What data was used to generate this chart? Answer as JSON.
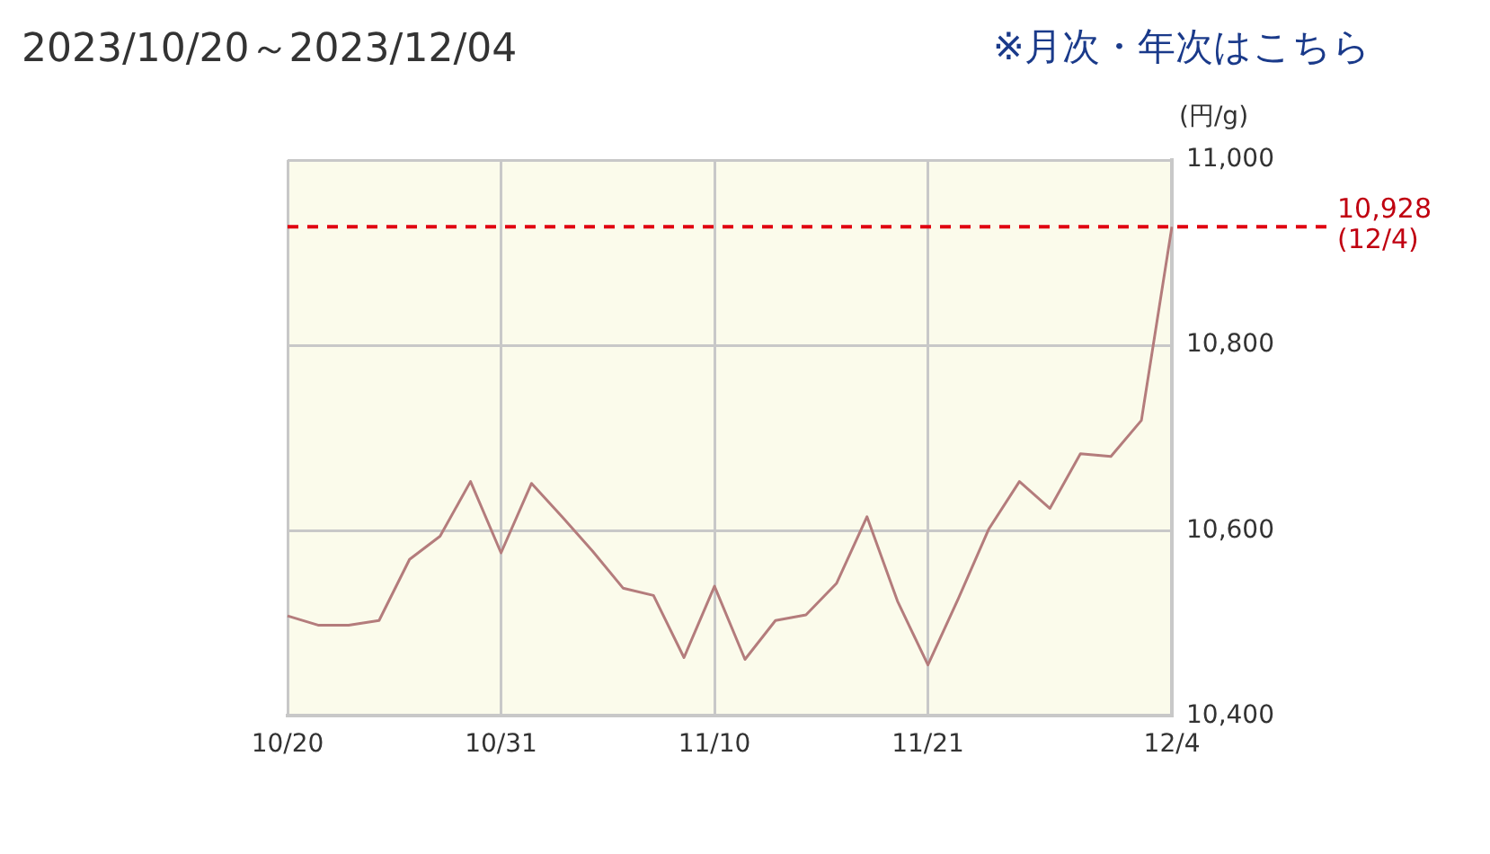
{
  "chart_data": {
    "type": "line",
    "title": "2023/10/20～2023/12/04",
    "ylabel": "(円/g)",
    "annotations": [
      "※月次・年次はこちら"
    ],
    "categories": [
      "10/20",
      null,
      null,
      null,
      null,
      null,
      null,
      "10/31",
      null,
      null,
      null,
      null,
      null,
      null,
      "11/10",
      null,
      null,
      null,
      null,
      null,
      null,
      "11/21",
      null,
      null,
      null,
      null,
      null,
      null,
      null,
      "12/4"
    ],
    "series": [
      {
        "color": "#b47c7c",
        "values": [
          10508,
          10498,
          10498,
          10503,
          10569,
          10594,
          10653,
          10576,
          10651,
          10615,
          10578,
          10538,
          10530,
          10463,
          10540,
          10461,
          10503,
          10509,
          10543,
          10615,
          10524,
          10455,
          10527,
          10602,
          10653,
          10624,
          10683,
          10680,
          10719,
          10928
        ]
      }
    ],
    "ylim": [
      10400,
      11000
    ],
    "yticks": [
      {
        "value": 10400,
        "label": "10,400"
      },
      {
        "value": 10600,
        "label": "10,600"
      },
      {
        "value": 10800,
        "label": "10,800"
      },
      {
        "value": 11000,
        "label": "11,000"
      }
    ],
    "ref_lines": [
      {
        "axis": "y",
        "value": 10928,
        "label": "10,928\n(12/4)",
        "color": "#e00010",
        "line_style": "dashed"
      }
    ],
    "grid": true,
    "legend": false,
    "marker": "none",
    "line_style": "solid"
  }
}
